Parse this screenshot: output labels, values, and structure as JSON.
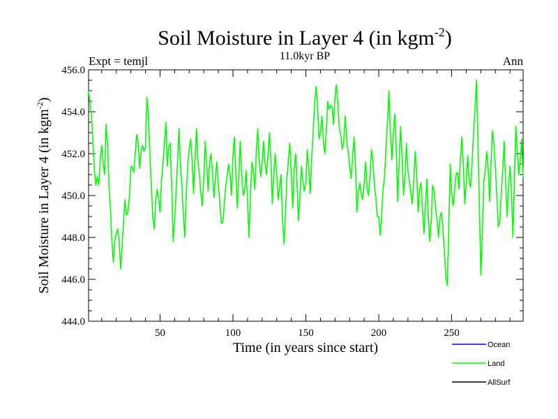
{
  "chart_data": {
    "type": "line",
    "title": "Soil Moisture in Layer 4 (in kgm",
    "title_sup": "-2",
    "title_close": ")",
    "left_subtitle": "Expt = temjl",
    "center_subtitle": "11.0kyr BP",
    "right_subtitle": "Ann",
    "xlabel": "Time (in years since start)",
    "ylabel": "Soil Moisture in Layer 4 (in kgm",
    "ylabel_sup": "-2",
    "ylabel_close": ")",
    "xlim": [
      1,
      299
    ],
    "ylim": [
      444.0,
      456.0
    ],
    "x_ticks": [
      50,
      100,
      150,
      200,
      250
    ],
    "x_tick_labels": [
      "50",
      "100",
      "150",
      "200",
      "250"
    ],
    "y_ticks": [
      444.0,
      446.0,
      448.0,
      450.0,
      452.0,
      454.0,
      456.0
    ],
    "y_tick_labels": [
      "444.0",
      "446.0",
      "448.0",
      "450.0",
      "452.0",
      "454.0",
      "456.0"
    ],
    "legend": [
      {
        "name": "Ocean",
        "color": "#0000ff"
      },
      {
        "name": "Land",
        "color": "#00ff00"
      },
      {
        "name": "AllSurf",
        "color": "#000000"
      }
    ],
    "series": [
      {
        "name": "Land",
        "color": "#00ff00",
        "keypoints": [
          [
            1,
            455.0
          ],
          [
            3,
            453.8
          ],
          [
            5,
            451.2
          ],
          [
            8,
            450.5
          ],
          [
            10,
            452.4
          ],
          [
            12,
            451.0
          ],
          [
            13,
            453.4
          ],
          [
            15,
            450.5
          ],
          [
            18,
            446.8
          ],
          [
            20,
            448.2
          ],
          [
            22,
            447.8
          ],
          [
            23,
            446.5
          ],
          [
            26,
            449.8
          ],
          [
            28,
            449.2
          ],
          [
            30,
            451.4
          ],
          [
            32,
            451.1
          ],
          [
            34,
            452.9
          ],
          [
            36,
            451.3
          ],
          [
            38,
            452.4
          ],
          [
            40,
            452.3
          ],
          [
            41,
            454.7
          ],
          [
            43,
            452.0
          ],
          [
            45,
            449.0
          ],
          [
            46,
            448.4
          ],
          [
            48,
            450.3
          ],
          [
            50,
            449.2
          ],
          [
            52,
            451.5
          ],
          [
            54,
            453.5
          ],
          [
            55,
            451.4
          ],
          [
            57,
            452.5
          ],
          [
            59,
            447.8
          ],
          [
            61,
            450.2
          ],
          [
            63,
            453.2
          ],
          [
            65,
            450.5
          ],
          [
            67,
            448.0
          ],
          [
            69,
            451.4
          ],
          [
            71,
            452.7
          ],
          [
            73,
            450.1
          ],
          [
            75,
            453.2
          ],
          [
            77,
            451.0
          ],
          [
            79,
            449.5
          ],
          [
            81,
            452.6
          ],
          [
            83,
            450.2
          ],
          [
            85,
            452.0
          ],
          [
            87,
            449.9
          ],
          [
            89,
            451.6
          ],
          [
            91,
            449.7
          ],
          [
            93,
            448.7
          ],
          [
            95,
            450.4
          ],
          [
            97,
            451.5
          ],
          [
            99,
            450.0
          ],
          [
            101,
            452.8
          ],
          [
            103,
            449.4
          ],
          [
            105,
            452.6
          ],
          [
            107,
            450.0
          ],
          [
            109,
            451.2
          ],
          [
            111,
            448.0
          ],
          [
            113,
            451.6
          ],
          [
            115,
            450.3
          ],
          [
            117,
            453.2
          ],
          [
            119,
            450.9
          ],
          [
            121,
            452.6
          ],
          [
            123,
            451.0
          ],
          [
            125,
            453.0
          ],
          [
            127,
            449.6
          ],
          [
            129,
            452.0
          ],
          [
            131,
            449.8
          ],
          [
            133,
            451.0
          ],
          [
            135,
            447.7
          ],
          [
            137,
            450.8
          ],
          [
            139,
            452.5
          ],
          [
            141,
            449.4
          ],
          [
            143,
            452.0
          ],
          [
            145,
            448.8
          ],
          [
            147,
            451.4
          ],
          [
            149,
            450.2
          ],
          [
            151,
            452.2
          ],
          [
            153,
            450.1
          ],
          [
            155,
            453.0
          ],
          [
            157,
            455.2
          ],
          [
            159,
            452.7
          ],
          [
            161,
            453.8
          ],
          [
            163,
            452.0
          ],
          [
            165,
            454.5
          ],
          [
            167,
            454.3
          ],
          [
            169,
            453.4
          ],
          [
            171,
            455.3
          ],
          [
            173,
            453.2
          ],
          [
            175,
            452.2
          ],
          [
            177,
            453.8
          ],
          [
            179,
            452.1
          ],
          [
            181,
            450.8
          ],
          [
            183,
            452.8
          ],
          [
            185,
            449.2
          ],
          [
            187,
            450.6
          ],
          [
            189,
            449.8
          ],
          [
            191,
            451.6
          ],
          [
            193,
            450.0
          ],
          [
            195,
            452.2
          ],
          [
            197,
            450.5
          ],
          [
            199,
            449.0
          ],
          [
            201,
            448.1
          ],
          [
            203,
            450.3
          ],
          [
            205,
            452.3
          ],
          [
            207,
            455.0
          ],
          [
            209,
            451.7
          ],
          [
            211,
            453.9
          ],
          [
            213,
            449.7
          ],
          [
            215,
            453.3
          ],
          [
            217,
            450.0
          ],
          [
            219,
            452.5
          ],
          [
            221,
            450.7
          ],
          [
            223,
            449.6
          ],
          [
            225,
            452.1
          ],
          [
            227,
            449.2
          ],
          [
            229,
            450.6
          ],
          [
            231,
            448.2
          ],
          [
            233,
            450.8
          ],
          [
            235,
            447.8
          ],
          [
            237,
            450.5
          ],
          [
            239,
            449.4
          ],
          [
            241,
            448.0
          ],
          [
            243,
            449.2
          ],
          [
            245,
            447.3
          ],
          [
            247,
            445.7
          ],
          [
            249,
            451.5
          ],
          [
            251,
            449.5
          ],
          [
            253,
            451.0
          ],
          [
            255,
            450.3
          ],
          [
            257,
            452.8
          ],
          [
            259,
            449.6
          ],
          [
            261,
            451.9
          ],
          [
            263,
            450.4
          ],
          [
            265,
            453.0
          ],
          [
            267,
            455.5
          ],
          [
            269,
            449.5
          ],
          [
            270,
            446.2
          ],
          [
            272,
            450.6
          ],
          [
            274,
            452.1
          ],
          [
            276,
            449.7
          ],
          [
            278,
            453.1
          ],
          [
            280,
            451.3
          ],
          [
            282,
            448.5
          ],
          [
            284,
            450.1
          ],
          [
            286,
            452.6
          ],
          [
            288,
            449.0
          ],
          [
            290,
            451.4
          ],
          [
            292,
            448.0
          ],
          [
            294,
            453.3
          ],
          [
            296,
            451.0
          ],
          [
            298,
            452.7
          ],
          [
            299,
            450.8
          ]
        ]
      }
    ]
  }
}
